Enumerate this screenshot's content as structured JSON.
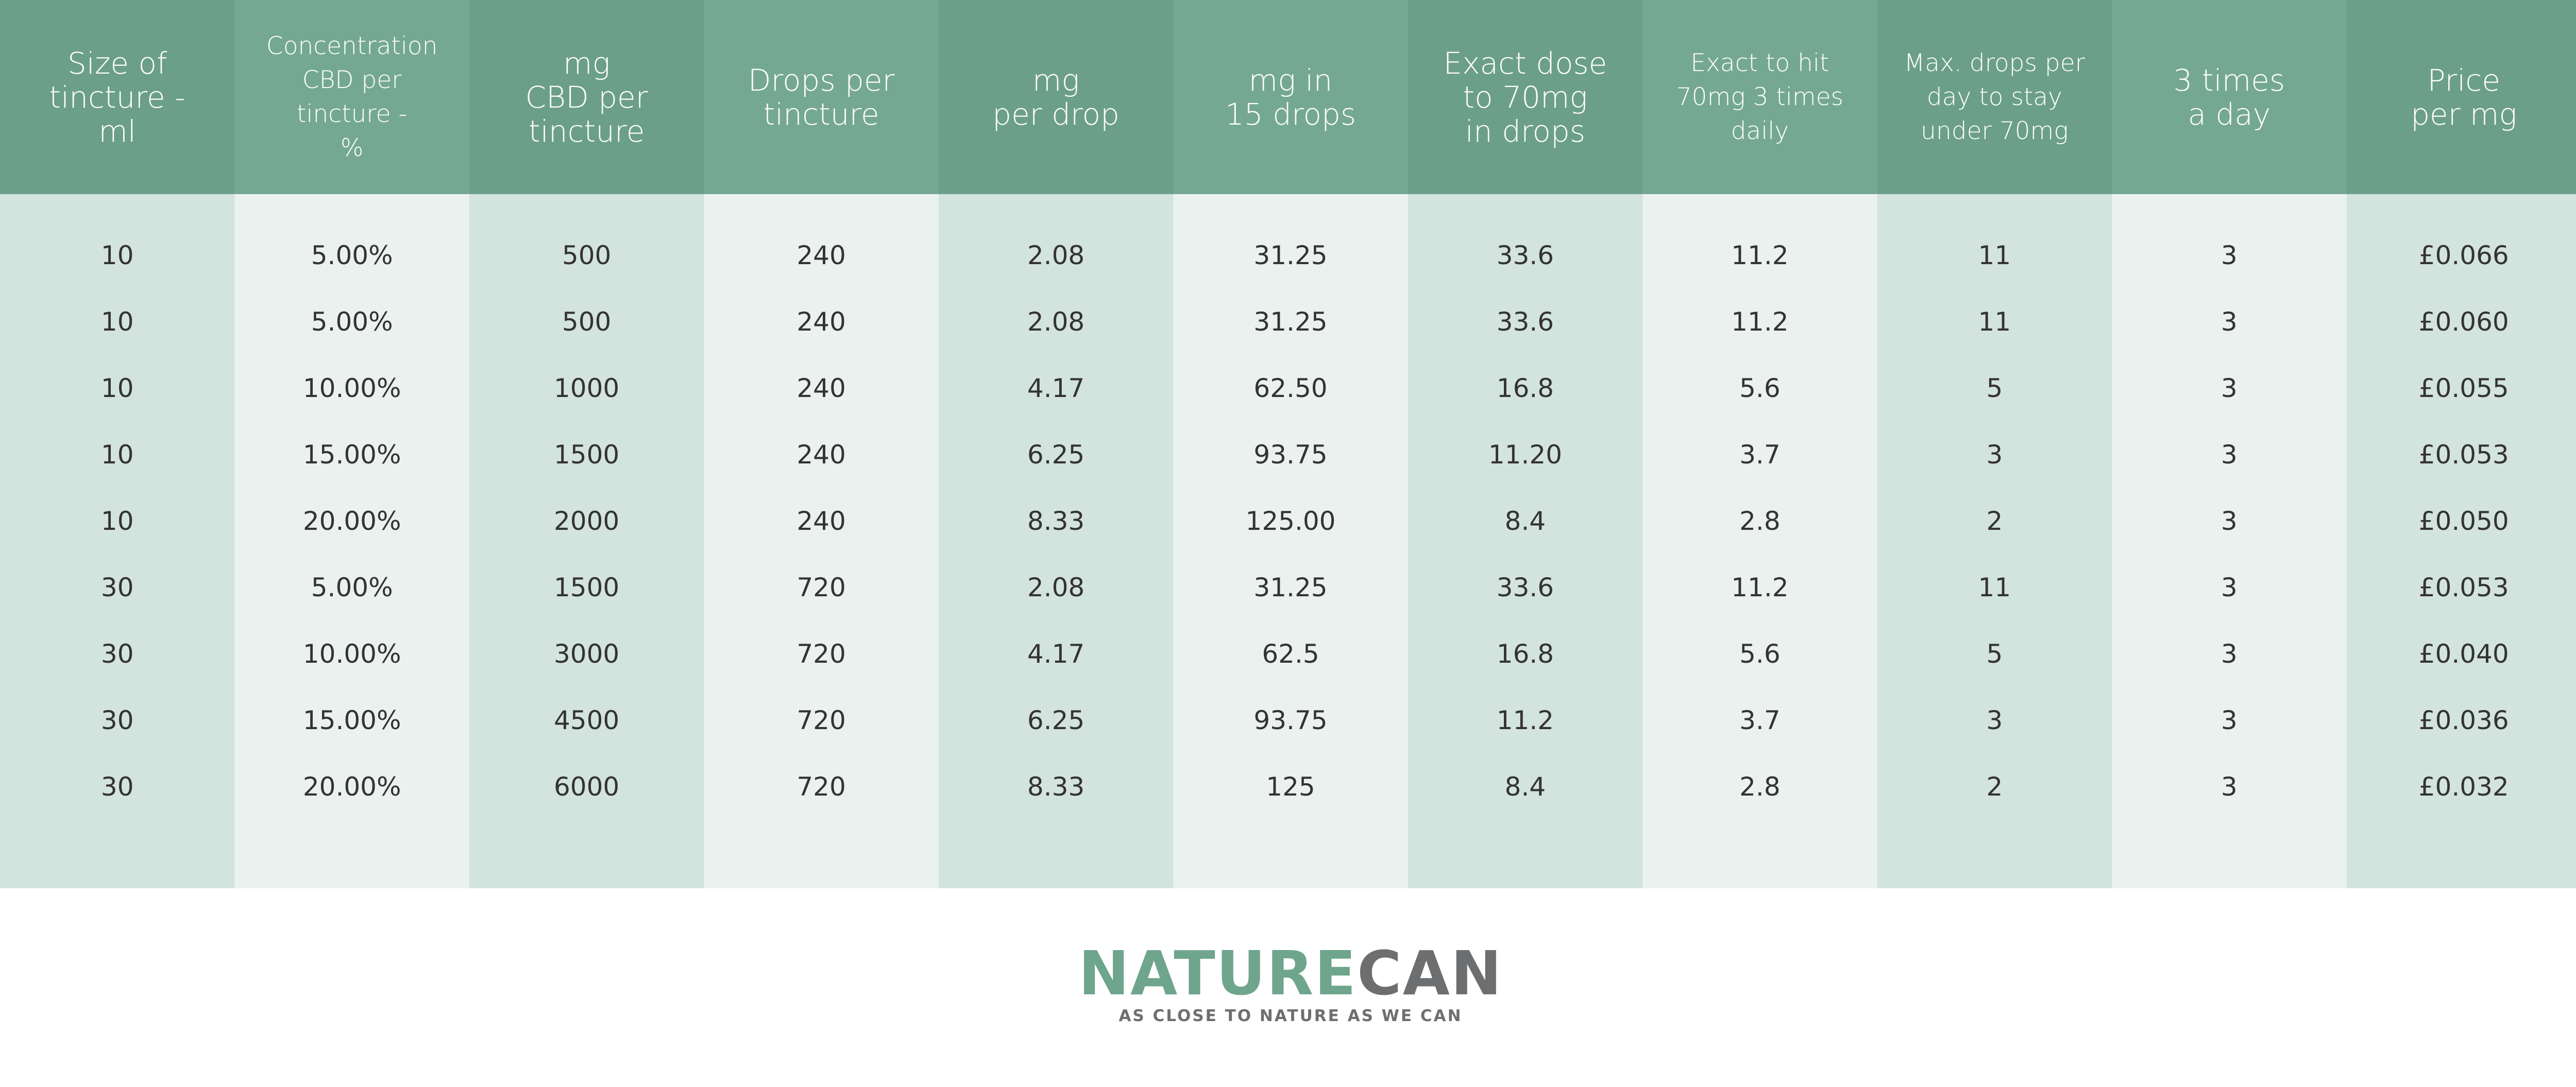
{
  "header": {
    "columns": [
      "Size of\ntincture -\nml",
      "Concentration\nCBD per\ntincture -\n%",
      "mg\nCBD per\ntincture",
      "Drops per\ntincture",
      "mg\nper drop",
      "mg in\n15 drops",
      "Exact dose\nto 70mg\nin drops",
      "Exact to hit\n70mg 3 times\ndaily",
      "Max. drops per\nday to stay\nunder 70mg",
      "3 times\na day",
      "Price\nper mg"
    ]
  },
  "table": {
    "rows": [
      [
        "10",
        "5.00%",
        "500",
        "240",
        "2.08",
        "31.25",
        "33.6",
        "11.2",
        "11",
        "3",
        "£0.066"
      ],
      [
        "10",
        "5.00%",
        "500",
        "240",
        "2.08",
        "31.25",
        "33.6",
        "11.2",
        "11",
        "3",
        "£0.060"
      ],
      [
        "10",
        "10.00%",
        "1000",
        "240",
        "4.17",
        "62.50",
        "16.8",
        "5.6",
        "5",
        "3",
        "£0.055"
      ],
      [
        "10",
        "15.00%",
        "1500",
        "240",
        "6.25",
        "93.75",
        "11.20",
        "3.7",
        "3",
        "3",
        "£0.053"
      ],
      [
        "10",
        "20.00%",
        "2000",
        "240",
        "8.33",
        "125.00",
        "8.4",
        "2.8",
        "2",
        "3",
        "£0.050"
      ],
      [
        "30",
        "5.00%",
        "1500",
        "720",
        "2.08",
        "31.25",
        "33.6",
        "11.2",
        "11",
        "3",
        "£0.053"
      ],
      [
        "30",
        "10.00%",
        "3000",
        "720",
        "4.17",
        "62.5",
        "16.8",
        "5.6",
        "5",
        "3",
        "£0.040"
      ],
      [
        "30",
        "15.00%",
        "4500",
        "720",
        "6.25",
        "93.75",
        "11.2",
        "3.7",
        "3",
        "3",
        "£0.036"
      ],
      [
        "30",
        "20.00%",
        "6000",
        "720",
        "8.33",
        "125",
        "8.4",
        "2.8",
        "2",
        "3",
        "£0.032"
      ]
    ]
  },
  "brand": {
    "name_part1": "NATURE",
    "name_part2": "CAN",
    "tagline": "AS CLOSE TO NATURE AS WE CAN"
  }
}
